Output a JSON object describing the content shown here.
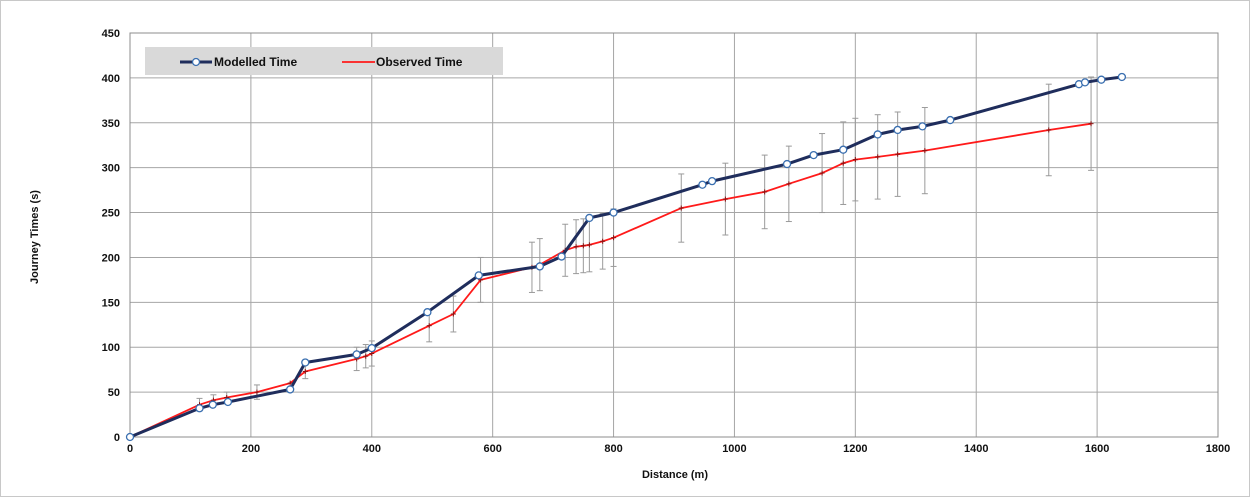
{
  "chart_data": {
    "type": "line",
    "title": "",
    "xlabel": "Distance (m)",
    "ylabel": "Journey Times (s)",
    "xlim": [
      0,
      1800
    ],
    "ylim": [
      0,
      450
    ],
    "xticks": [
      0,
      200,
      400,
      600,
      800,
      1000,
      1200,
      1400,
      1600,
      1800
    ],
    "yticks": [
      0,
      50,
      100,
      150,
      200,
      250,
      300,
      350,
      400,
      450
    ],
    "grid": true,
    "legend_position": "top-left",
    "series": [
      {
        "name": "Modelled Time",
        "color": "#1f2d5c",
        "marker": "circle",
        "points": [
          [
            0,
            0
          ],
          [
            115,
            32
          ],
          [
            137,
            36
          ],
          [
            162,
            39
          ],
          [
            265,
            53
          ],
          [
            290,
            83
          ],
          [
            375,
            92
          ],
          [
            400,
            99
          ],
          [
            492,
            139
          ],
          [
            577,
            180
          ],
          [
            678,
            190
          ],
          [
            714,
            201
          ],
          [
            760,
            244
          ],
          [
            800,
            250
          ],
          [
            947,
            281
          ],
          [
            963,
            285
          ],
          [
            1087,
            304
          ],
          [
            1131,
            314
          ],
          [
            1180,
            320
          ],
          [
            1237,
            337
          ],
          [
            1270,
            342
          ],
          [
            1311,
            346
          ],
          [
            1357,
            353
          ],
          [
            1570,
            393
          ],
          [
            1580,
            395
          ],
          [
            1607,
            398
          ],
          [
            1641,
            401
          ]
        ]
      },
      {
        "name": "Observed Time",
        "color": "#ff1a1a",
        "marker": "plus",
        "points": [
          [
            0,
            0
          ],
          [
            115,
            36
          ],
          [
            138,
            41
          ],
          [
            160,
            44
          ],
          [
            210,
            50
          ],
          [
            265,
            60
          ],
          [
            290,
            73
          ],
          [
            375,
            87
          ],
          [
            390,
            90
          ],
          [
            400,
            93
          ],
          [
            495,
            124
          ],
          [
            535,
            137
          ],
          [
            580,
            175
          ],
          [
            665,
            189
          ],
          [
            678,
            192
          ],
          [
            720,
            208
          ],
          [
            738,
            212
          ],
          [
            750,
            213
          ],
          [
            760,
            214
          ],
          [
            782,
            218
          ],
          [
            800,
            222
          ],
          [
            912,
            255
          ],
          [
            985,
            265
          ],
          [
            1050,
            273
          ],
          [
            1090,
            282
          ],
          [
            1145,
            294
          ],
          [
            1180,
            305
          ],
          [
            1200,
            309
          ],
          [
            1237,
            312
          ],
          [
            1270,
            315
          ],
          [
            1315,
            319
          ],
          [
            1520,
            342
          ],
          [
            1590,
            349
          ]
        ],
        "error_bars": [
          [
            115,
            36,
            7
          ],
          [
            138,
            41,
            6
          ],
          [
            160,
            44,
            6
          ],
          [
            210,
            50,
            8
          ],
          [
            290,
            73,
            8
          ],
          [
            375,
            87,
            13
          ],
          [
            390,
            90,
            13
          ],
          [
            400,
            93,
            14
          ],
          [
            495,
            124,
            18
          ],
          [
            535,
            137,
            20
          ],
          [
            580,
            175,
            25
          ],
          [
            665,
            189,
            28
          ],
          [
            678,
            192,
            29
          ],
          [
            720,
            208,
            29
          ],
          [
            738,
            212,
            30
          ],
          [
            750,
            213,
            30
          ],
          [
            760,
            214,
            30
          ],
          [
            782,
            218,
            31
          ],
          [
            800,
            222,
            32
          ],
          [
            912,
            255,
            38
          ],
          [
            985,
            265,
            40
          ],
          [
            1050,
            273,
            41
          ],
          [
            1090,
            282,
            42
          ],
          [
            1145,
            294,
            44
          ],
          [
            1180,
            305,
            46
          ],
          [
            1200,
            309,
            46
          ],
          [
            1237,
            312,
            47
          ],
          [
            1270,
            315,
            47
          ],
          [
            1315,
            319,
            48
          ],
          [
            1520,
            342,
            51
          ],
          [
            1590,
            349,
            52
          ]
        ]
      }
    ]
  }
}
